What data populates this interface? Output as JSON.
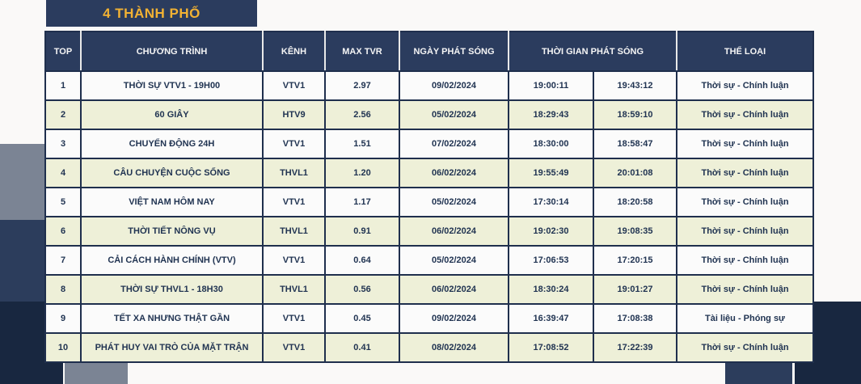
{
  "page": {
    "title": "4 THÀNH PHỐ"
  },
  "colors": {
    "header_navy": "#2b3c5e",
    "title_gold": "#f2b233",
    "row_yellow": "#eef0d8",
    "row_white": "#fbfbfb",
    "cell_border": "#1f2f4d",
    "cell_text": "#213452",
    "decor_gray": "#7b8494",
    "decor_navy": "#2c3d5c",
    "decor_dark_navy": "#182740"
  },
  "table": {
    "columns": [
      "TOP",
      "CHƯƠNG TRÌNH",
      "KÊNH",
      "MAX TVR",
      "NGÀY PHÁT SÓNG",
      "THỜI GIAN PHÁT SÓNG",
      "THỂ LOẠI"
    ],
    "rows": [
      {
        "top": "1",
        "program": "THỜI SỰ VTV1 - 19H00",
        "channel": "VTV1",
        "max_tvr": "2.97",
        "date": "09/02/2024",
        "start_time": "19:00:11",
        "end_time": "19:43:12",
        "genre": "Thời sự - Chính luận"
      },
      {
        "top": "2",
        "program": "60 GIÂY",
        "channel": "HTV9",
        "max_tvr": "2.56",
        "date": "05/02/2024",
        "start_time": "18:29:43",
        "end_time": "18:59:10",
        "genre": "Thời sự - Chính luận"
      },
      {
        "top": "3",
        "program": "CHUYỂN ĐỘNG 24H",
        "channel": "VTV1",
        "max_tvr": "1.51",
        "date": "07/02/2024",
        "start_time": "18:30:00",
        "end_time": "18:58:47",
        "genre": "Thời sự - Chính luận"
      },
      {
        "top": "4",
        "program": "CÂU CHUYỆN CUỘC SỐNG",
        "channel": "THVL1",
        "max_tvr": "1.20",
        "date": "06/02/2024",
        "start_time": "19:55:49",
        "end_time": "20:01:08",
        "genre": "Thời sự - Chính luận"
      },
      {
        "top": "5",
        "program": "VIỆT NAM HÔM NAY",
        "channel": "VTV1",
        "max_tvr": "1.17",
        "date": "05/02/2024",
        "start_time": "17:30:14",
        "end_time": "18:20:58",
        "genre": "Thời sự - Chính luận"
      },
      {
        "top": "6",
        "program": "THỜI TIẾT NÔNG VỤ",
        "channel": "THVL1",
        "max_tvr": "0.91",
        "date": "06/02/2024",
        "start_time": "19:02:30",
        "end_time": "19:08:35",
        "genre": "Thời sự - Chính luận"
      },
      {
        "top": "7",
        "program": "CẢI CÁCH HÀNH CHÍNH (VTV)",
        "channel": "VTV1",
        "max_tvr": "0.64",
        "date": "05/02/2024",
        "start_time": "17:06:53",
        "end_time": "17:20:15",
        "genre": "Thời sự - Chính luận"
      },
      {
        "top": "8",
        "program": "THỜI SỰ THVL1 - 18H30",
        "channel": "THVL1",
        "max_tvr": "0.56",
        "date": "06/02/2024",
        "start_time": "18:30:24",
        "end_time": "19:01:27",
        "genre": "Thời sự - Chính luận"
      },
      {
        "top": "9",
        "program": "TẾT XA NHƯNG THẬT GẦN",
        "channel": "VTV1",
        "max_tvr": "0.45",
        "date": "09/02/2024",
        "start_time": "16:39:47",
        "end_time": "17:08:38",
        "genre": "Tài liệu - Phóng sự"
      },
      {
        "top": "10",
        "program": "PHÁT HUY VAI TRÒ CỦA MẶT TRẬN",
        "channel": "VTV1",
        "max_tvr": "0.41",
        "date": "08/02/2024",
        "start_time": "17:08:52",
        "end_time": "17:22:39",
        "genre": "Thời sự - Chính luận"
      }
    ]
  }
}
